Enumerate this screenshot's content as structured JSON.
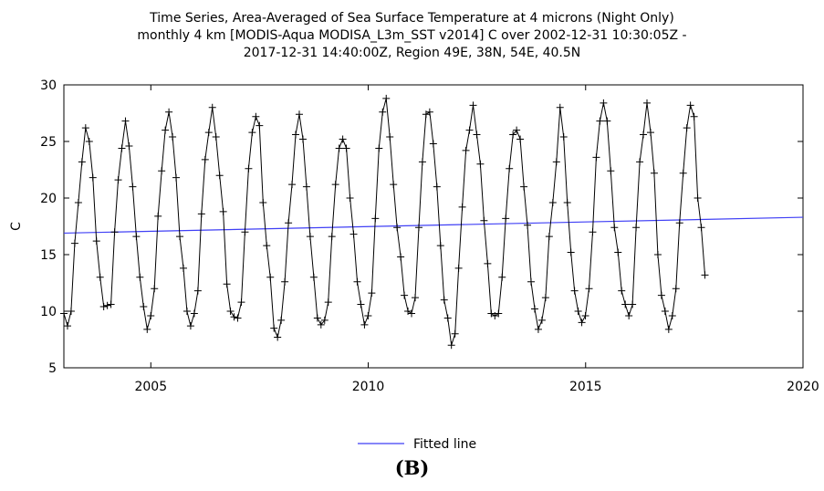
{
  "chart_data": {
    "type": "line",
    "title": [
      "Time Series, Area-Averaged of Sea Surface Temperature at 4 microns (Night Only)",
      "monthly 4 km [MODIS-Aqua MODISA_L3m_SST v2014] C over 2002-12-31 10:30:05Z -",
      "2017-12-31 14:40:00Z, Region 49E, 38N, 54E, 40.5N"
    ],
    "xlabel": "",
    "ylabel": "C",
    "xlim": [
      2003.0,
      2020.0
    ],
    "ylim": [
      5,
      30
    ],
    "xticks": [
      2005,
      2010,
      2015,
      2020
    ],
    "yticks": [
      5,
      10,
      15,
      20,
      25,
      30
    ],
    "x_start_year": 2003.0,
    "x_step_years": 0.0833,
    "series": [
      {
        "name": "",
        "color": "#000000",
        "marker": "plus",
        "values": [
          9.8,
          8.7,
          10.0,
          16.0,
          19.6,
          23.2,
          26.2,
          25.0,
          21.8,
          16.2,
          13.0,
          10.4,
          10.5,
          10.6,
          17.0,
          21.6,
          24.4,
          26.8,
          24.6,
          21.0,
          16.6,
          13.0,
          10.4,
          8.4,
          9.6,
          12.0,
          18.4,
          22.4,
          26.0,
          27.6,
          25.4,
          21.8,
          16.6,
          13.8,
          10.0,
          8.7,
          9.8,
          11.8,
          18.6,
          23.4,
          25.8,
          28.0,
          25.4,
          22.0,
          18.8,
          12.4,
          10.0,
          9.5,
          9.4,
          10.8,
          17.0,
          22.6,
          25.8,
          27.2,
          26.4,
          19.6,
          15.8,
          13.0,
          8.5,
          7.7,
          9.2,
          12.6,
          17.8,
          21.2,
          25.6,
          27.4,
          25.2,
          21.0,
          16.6,
          13.0,
          9.4,
          8.8,
          9.2,
          10.8,
          16.6,
          21.2,
          24.4,
          25.2,
          24.4,
          20.0,
          16.8,
          12.6,
          10.6,
          8.8,
          9.6,
          11.6,
          18.2,
          24.4,
          27.6,
          28.8,
          25.4,
          21.2,
          17.4,
          14.8,
          11.4,
          10.0,
          9.8,
          11.2,
          17.4,
          23.2,
          27.4,
          27.6,
          24.8,
          21.0,
          15.8,
          11.0,
          9.4,
          7.0,
          8.0,
          13.8,
          19.2,
          24.2,
          26.0,
          28.2,
          25.6,
          23.0,
          18.0,
          14.2,
          9.8,
          9.6,
          9.8,
          13.0,
          18.2,
          22.6,
          25.6,
          26.0,
          25.2,
          21.0,
          17.6,
          12.6,
          10.2,
          8.4,
          9.2,
          11.2,
          16.6,
          19.6,
          23.2,
          28.0,
          25.4,
          19.6,
          15.2,
          11.8,
          10.0,
          9.0,
          9.6,
          12.0,
          17.0,
          23.6,
          26.8,
          28.4,
          26.8,
          22.4,
          17.4,
          15.2,
          11.8,
          10.6,
          9.6,
          10.6,
          17.4,
          23.2,
          25.6,
          28.4,
          25.8,
          22.2,
          15.0,
          11.4,
          10.0,
          8.4,
          9.6,
          12.0,
          17.8,
          22.2,
          26.2,
          28.2,
          27.2,
          20.0,
          17.4,
          13.2
        ]
      },
      {
        "name": "Fitted line",
        "color": "#3f3ff5",
        "x": [
          2003.0,
          2020.0
        ],
        "values": [
          16.9,
          18.3
        ]
      }
    ],
    "legend": {
      "placement": "bottom-center",
      "entries": [
        "Fitted line"
      ]
    },
    "grid": false
  },
  "caption": "(B)"
}
